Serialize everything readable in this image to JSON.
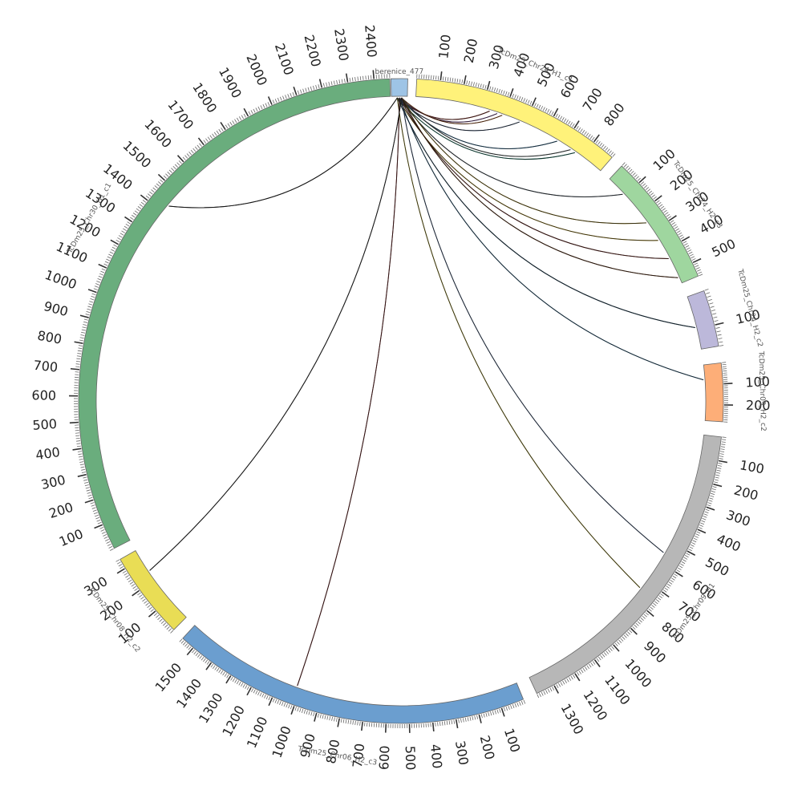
{
  "chart_data": {
    "type": "chord",
    "title": "",
    "segments": [
      {
        "name": "berenice_477",
        "color": "#9ec4e6",
        "start_angle": -1.8,
        "end_angle": 1.2,
        "length": 8,
        "tick_labels": []
      },
      {
        "name": "TcDm25_Chr24_H1_c1",
        "color": "#fff27a",
        "start_angle": 2.8,
        "end_angle": 40.9,
        "length": 900,
        "tick_labels": [
          100,
          200,
          300,
          400,
          500,
          600,
          700,
          800
        ]
      },
      {
        "name": "TcDm25_Chr24_H2_c3",
        "color": "#9fd69f",
        "start_angle": 43.2,
        "end_angle": 67.2,
        "length": 560,
        "tick_labels": [
          100,
          200,
          300,
          400,
          500
        ]
      },
      {
        "name": "TcDm25_Chr24_H2_c2",
        "color": "#bcb8da",
        "start_angle": 70.0,
        "end_angle": 80.2,
        "length": 160,
        "tick_labels": [
          100
        ]
      },
      {
        "name": "TcDm25_Chr09_H2_c2",
        "color": "#fdae78",
        "start_angle": 83.2,
        "end_angle": 93.7,
        "length": 280,
        "tick_labels": [
          100,
          200
        ]
      },
      {
        "name": "TcDm25_Chr09_H1",
        "color": "#b7b7b7",
        "start_angle": 96.4,
        "end_angle": 155.1,
        "length": 1380,
        "tick_labels": [
          100,
          200,
          300,
          400,
          500,
          600,
          700,
          800,
          900,
          1000,
          1100,
          1200,
          1300
        ]
      },
      {
        "name": "TcDm25_Chr06_H2_c3",
        "color": "#6b9ecf",
        "start_angle": 157.7,
        "end_angle": 222.6,
        "length": 1560,
        "tick_labels": [
          100,
          200,
          300,
          400,
          500,
          600,
          700,
          800,
          900,
          1000,
          1100,
          1200,
          1300,
          1400,
          1500
        ]
      },
      {
        "name": "TcDm25_Chr08_H2_c2",
        "color": "#e9dd55",
        "start_angle": 224.8,
        "end_angle": 240.6,
        "length": 340,
        "tick_labels": [
          100,
          200,
          300
        ]
      },
      {
        "name": "TcDm25_Chr30_H1_c1",
        "color": "#6aad7d",
        "start_angle": 242.8,
        "end_angle": 358.0,
        "length": 2460,
        "tick_labels": [
          100,
          200,
          300,
          400,
          500,
          600,
          700,
          800,
          900,
          1000,
          1100,
          1200,
          1300,
          1400,
          1500,
          1600,
          1700,
          1800,
          1900,
          2000,
          2100,
          2200,
          2300,
          2400
        ]
      }
    ],
    "links": [
      {
        "to_angle": 17,
        "color": "#c0392b"
      },
      {
        "to_angle": 18.5,
        "color": "#8e44ad"
      },
      {
        "to_angle": 19.5,
        "color": "#d35400"
      },
      {
        "to_angle": 23,
        "color": "#3c5a8a"
      },
      {
        "to_angle": 31,
        "color": "#2e86c1"
      },
      {
        "to_angle": 34,
        "color": "#7f8c8d"
      },
      {
        "to_angle": 35,
        "color": "#17a589"
      },
      {
        "to_angle": 47,
        "color": "#5d6d7e"
      },
      {
        "to_angle": 54,
        "color": "#b7950b"
      },
      {
        "to_angle": 58,
        "color": "#d4ac0d"
      },
      {
        "to_angle": 62,
        "color": "#922b21"
      },
      {
        "to_angle": 66,
        "color": "#6e2c00"
      },
      {
        "to_angle": 76,
        "color": "#1b4f72"
      },
      {
        "to_angle": 86,
        "color": "#2874a6"
      },
      {
        "to_angle": 120,
        "color": "#5b7db1"
      },
      {
        "to_angle": 128,
        "color": "#c9b71c"
      },
      {
        "to_angle": 200,
        "color": "#8b1a1a"
      },
      {
        "to_angle": 236,
        "color": "#333333"
      },
      {
        "to_angle": 310,
        "color": "#222222"
      }
    ]
  }
}
